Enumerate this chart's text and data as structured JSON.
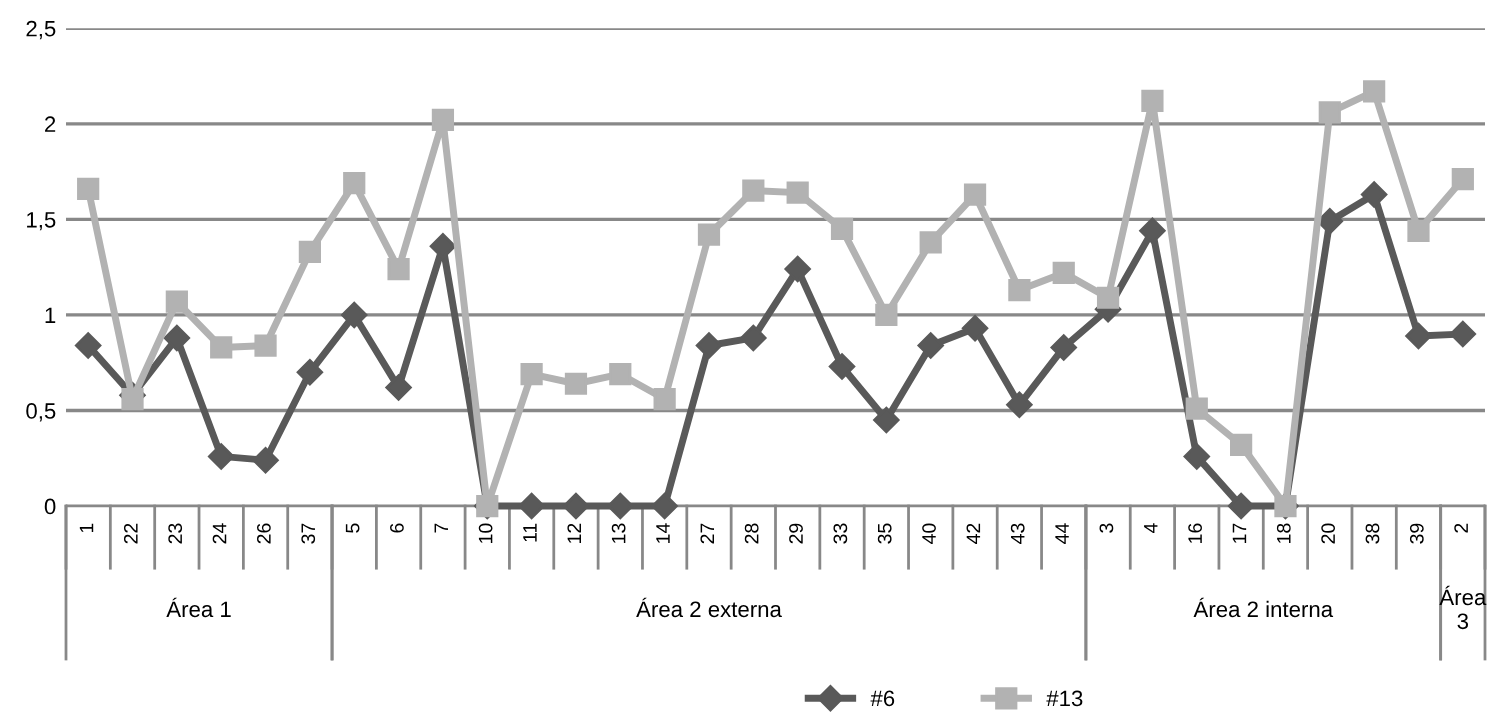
{
  "chart_data": {
    "type": "line",
    "categories": [
      "1",
      "22",
      "23",
      "24",
      "26",
      "37",
      "5",
      "6",
      "7",
      "10",
      "11",
      "12",
      "13",
      "14",
      "27",
      "28",
      "29",
      "33",
      "35",
      "40",
      "42",
      "43",
      "44",
      "3",
      "4",
      "16",
      "17",
      "18",
      "20",
      "38",
      "39",
      "2"
    ],
    "series": [
      {
        "name": "#6",
        "color": "#595959",
        "marker": "diamond",
        "values": [
          0.84,
          0.58,
          0.88,
          0.26,
          0.24,
          0.7,
          1.0,
          0.62,
          1.36,
          0,
          0,
          0,
          0,
          0,
          0.84,
          0.88,
          1.24,
          0.73,
          0.45,
          0.84,
          0.93,
          0.53,
          0.83,
          1.03,
          1.44,
          0.26,
          0,
          0,
          1.49,
          1.63,
          0.89,
          0.9
        ]
      },
      {
        "name": "#13",
        "color": "#b2b2b2",
        "marker": "square",
        "values": [
          1.66,
          0.56,
          1.07,
          0.83,
          0.84,
          1.33,
          1.69,
          1.24,
          2.02,
          0,
          0.69,
          0.64,
          0.69,
          0.56,
          1.42,
          1.65,
          1.64,
          1.45,
          1.0,
          1.38,
          1.63,
          1.13,
          1.22,
          1.09,
          2.12,
          0.51,
          0.32,
          0,
          2.06,
          2.17,
          1.44,
          1.71
        ]
      }
    ],
    "ylim": [
      0,
      2.5
    ],
    "yticks": [
      {
        "value": 0,
        "label": "0"
      },
      {
        "value": 0.5,
        "label": "0,5"
      },
      {
        "value": 1,
        "label": "1"
      },
      {
        "value": 1.5,
        "label": "1,5"
      },
      {
        "value": 2,
        "label": "2"
      },
      {
        "value": 2.5,
        "label": "2,5"
      }
    ],
    "annotations": [
      "Área 1",
      "Área 2 externa",
      "Área 2 interna",
      "Área 3"
    ],
    "grid": "y",
    "legend": "bottom",
    "line_style": "solid"
  }
}
